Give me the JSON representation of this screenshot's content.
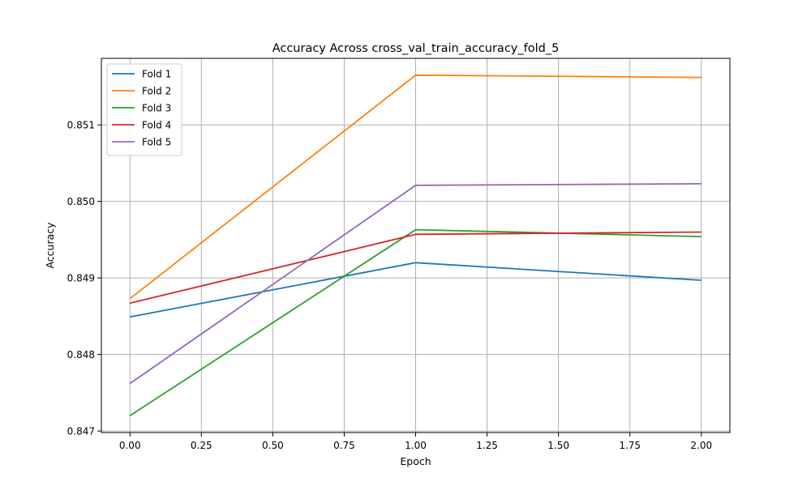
{
  "chart_data": {
    "type": "line",
    "title": "Accuracy Across cross_val_train_accuracy_fold_5",
    "xlabel": "Epoch",
    "ylabel": "Accuracy",
    "xlim": [
      -0.1,
      2.1
    ],
    "ylim": [
      0.84698,
      0.85187
    ],
    "xticks": [
      0.0,
      0.25,
      0.5,
      0.75,
      1.0,
      1.25,
      1.5,
      1.75,
      2.0
    ],
    "xtick_labels": [
      "0.00",
      "0.25",
      "0.50",
      "0.75",
      "1.00",
      "1.25",
      "1.50",
      "1.75",
      "2.00"
    ],
    "yticks": [
      0.847,
      0.848,
      0.849,
      0.85,
      0.851
    ],
    "ytick_labels": [
      "0.847",
      "0.848",
      "0.849",
      "0.850",
      "0.851"
    ],
    "grid": true,
    "legend_position": "top-left",
    "x": [
      0,
      1,
      2
    ],
    "series": [
      {
        "name": "Fold 1",
        "color": "#1f77b4",
        "values": [
          0.84849,
          0.8492,
          0.84897
        ]
      },
      {
        "name": "Fold 2",
        "color": "#ff7f0e",
        "values": [
          0.84873,
          0.85165,
          0.85162
        ]
      },
      {
        "name": "Fold 3",
        "color": "#2ca02c",
        "values": [
          0.8472,
          0.84963,
          0.84954
        ]
      },
      {
        "name": "Fold 4",
        "color": "#d62728",
        "values": [
          0.84867,
          0.84957,
          0.8496
        ]
      },
      {
        "name": "Fold 5",
        "color": "#9467bd",
        "values": [
          0.84762,
          0.85021,
          0.85023
        ]
      }
    ]
  }
}
